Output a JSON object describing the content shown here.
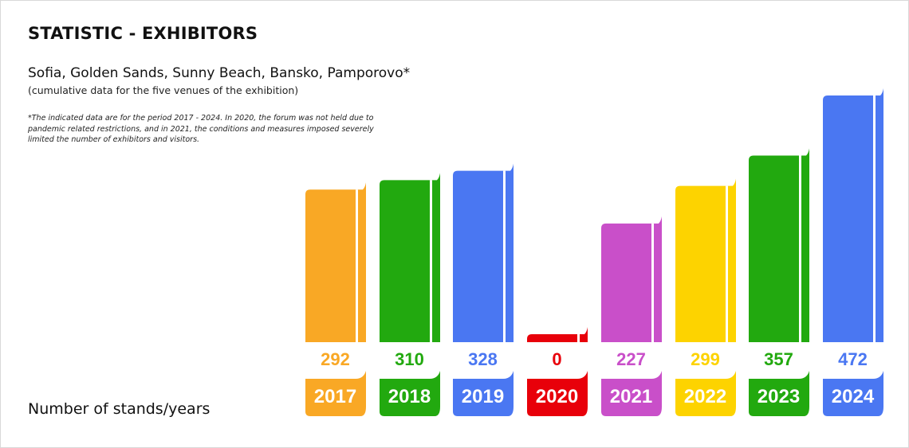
{
  "chart_data": {
    "type": "bar",
    "title": "STATISTIC - EXHIBITORS",
    "subtitle": "Sofia, Golden Sands, Sunny Beach, Bansko, Pamporovo*",
    "subnote": "(cumulative data for the five venues of the exhibition)",
    "footnote": "*The indicated data are for the period 2017 - 2024. In 2020, the forum was not held due to pandemic related restrictions, and in 2021, the conditions and measures imposed severely limited the number of exhibitors and visitors.",
    "ylabel": "Number of stands/years",
    "categories": [
      "2017",
      "2018",
      "2019",
      "2020",
      "2021",
      "2022",
      "2023",
      "2024"
    ],
    "values": [
      292,
      310,
      328,
      0,
      227,
      299,
      357,
      472
    ],
    "colors": [
      "#F9A825",
      "#22A90F",
      "#4A77F2",
      "#E8000A",
      "#C94FC9",
      "#FDD300",
      "#22A90F",
      "#4A77F2"
    ],
    "ylim": [
      0,
      472
    ]
  }
}
